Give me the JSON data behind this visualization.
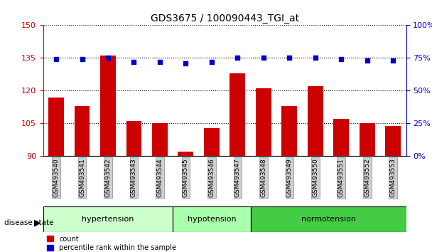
{
  "title": "GDS3675 / 100090443_TGI_at",
  "samples": [
    "GSM493540",
    "GSM493541",
    "GSM493542",
    "GSM493543",
    "GSM493544",
    "GSM493545",
    "GSM493546",
    "GSM493547",
    "GSM493548",
    "GSM493549",
    "GSM493550",
    "GSM493551",
    "GSM493552",
    "GSM493553"
  ],
  "count_values": [
    117,
    113,
    136,
    106,
    105,
    92,
    103,
    128,
    121,
    113,
    122,
    107,
    105,
    104
  ],
  "percentile_values": [
    74,
    74,
    75,
    72,
    72,
    71,
    72,
    75,
    75,
    75,
    75,
    74,
    73,
    73
  ],
  "groups": [
    {
      "label": "hypertension",
      "start": 0,
      "end": 5,
      "color": "#ccffcc"
    },
    {
      "label": "hypotension",
      "start": 5,
      "end": 8,
      "color": "#aaffaa"
    },
    {
      "label": "normotension",
      "start": 8,
      "end": 14,
      "color": "#44cc44"
    }
  ],
  "ylim_left": [
    90,
    150
  ],
  "ylim_right": [
    0,
    100
  ],
  "yticks_left": [
    90,
    105,
    120,
    135,
    150
  ],
  "yticks_right": [
    0,
    25,
    50,
    75,
    100
  ],
  "bar_color": "#cc0000",
  "dot_color": "#0000cc",
  "bar_bottom": 90,
  "background_color": "#ffffff",
  "grid_color": "#000000",
  "tick_label_bg": "#dddddd"
}
